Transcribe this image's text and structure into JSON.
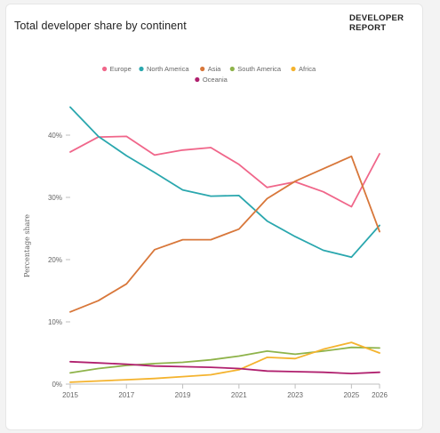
{
  "header": {
    "title": "Total developer share by continent",
    "brand_line1": "DEVELOPER",
    "brand_line2": "REPORT"
  },
  "chart_data": {
    "type": "line",
    "title": "Total developer share by continent",
    "xlabel": "",
    "ylabel": "Percentage share",
    "x_ticks": [
      "2015",
      "2017",
      "2019",
      "2021",
      "2023",
      "2025",
      "2026"
    ],
    "y_ticks": [
      "0%",
      "10%",
      "20%",
      "30%",
      "40%"
    ],
    "xlim": [
      2015,
      2026
    ],
    "ylim": [
      0,
      45
    ],
    "grid": false,
    "legend_position": "top",
    "x": [
      2015,
      2016,
      2017,
      2018,
      2019,
      2020,
      2021,
      2022,
      2023,
      2024,
      2025,
      2026
    ],
    "series": [
      {
        "name": "Europe",
        "color": "#f0668a",
        "values": [
          37.3,
          39.7,
          39.8,
          36.8,
          37.6,
          38.0,
          35.3,
          31.6,
          32.5,
          30.9,
          28.5,
          37.0
        ]
      },
      {
        "name": "North America",
        "color": "#2aa7ae",
        "values": [
          44.5,
          39.8,
          36.7,
          34.0,
          31.2,
          30.2,
          30.3,
          26.2,
          23.7,
          21.5,
          20.4,
          25.5
        ]
      },
      {
        "name": "Asia",
        "color": "#d8773a",
        "values": [
          11.6,
          13.4,
          16.1,
          21.6,
          23.2,
          23.2,
          24.9,
          29.8,
          32.6,
          34.6,
          36.6,
          24.5
        ]
      },
      {
        "name": "South America",
        "color": "#8eb34a",
        "values": [
          1.8,
          2.5,
          3.0,
          3.3,
          3.5,
          3.9,
          4.5,
          5.3,
          4.8,
          5.3,
          5.9,
          5.8
        ]
      },
      {
        "name": "Africa",
        "color": "#f4b32e",
        "values": [
          0.3,
          0.5,
          0.7,
          0.9,
          1.2,
          1.5,
          2.3,
          4.3,
          4.1,
          5.6,
          6.7,
          5.0
        ]
      },
      {
        "name": "Oceania",
        "color": "#b0206e",
        "values": [
          3.6,
          3.4,
          3.2,
          2.9,
          2.8,
          2.7,
          2.5,
          2.1,
          2.0,
          1.9,
          1.7,
          1.9
        ]
      }
    ]
  }
}
